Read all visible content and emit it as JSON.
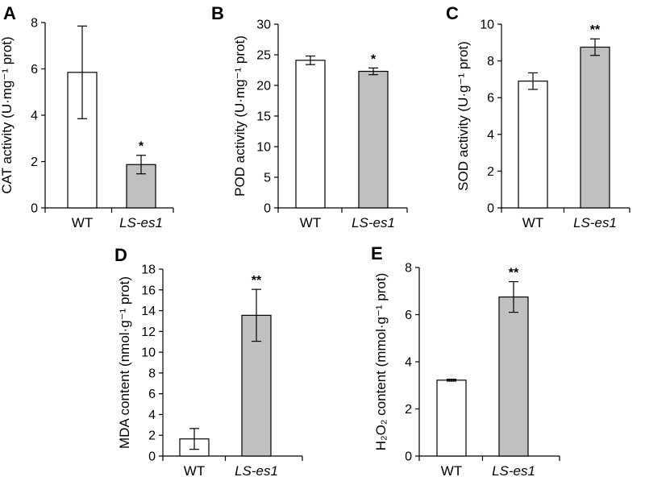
{
  "colors": {
    "wt_fill": "#ffffff",
    "mutant_fill": "#c0c0c0",
    "stroke": "#000000"
  },
  "chart_data": [
    {
      "panel": "A",
      "type": "bar",
      "ylabel": "CAT activity (U·mg⁻¹ prot)",
      "categories": [
        "WT",
        "LS-es1"
      ],
      "values": [
        5.85,
        1.87
      ],
      "errors": [
        2.0,
        0.4
      ],
      "significance": [
        "",
        "*"
      ],
      "ylim": [
        0,
        8
      ],
      "yticks": [
        "0",
        "2",
        "4",
        "6",
        "8"
      ]
    },
    {
      "panel": "B",
      "type": "bar",
      "ylabel": "POD activity (U·mg⁻¹ prot)",
      "categories": [
        "WT",
        "LS-es1"
      ],
      "values": [
        24.1,
        22.3
      ],
      "errors": [
        0.7,
        0.55
      ],
      "significance": [
        "",
        "*"
      ],
      "ylim": [
        0,
        30
      ],
      "yticks": [
        "0",
        "5",
        "10",
        "15",
        "20",
        "25",
        "30"
      ]
    },
    {
      "panel": "C",
      "type": "bar",
      "ylabel": "SOD activity (U·g⁻¹ prot)",
      "categories": [
        "WT",
        "LS-es1"
      ],
      "values": [
        6.9,
        8.75
      ],
      "errors": [
        0.45,
        0.45
      ],
      "significance": [
        "",
        "**"
      ],
      "ylim": [
        0,
        10
      ],
      "yticks": [
        "0",
        "2",
        "4",
        "6",
        "8",
        "10"
      ]
    },
    {
      "panel": "D",
      "type": "bar",
      "ylabel": "MDA content (nmol·g⁻¹ prot)",
      "categories": [
        "WT",
        "LS-es1"
      ],
      "values": [
        1.65,
        13.55
      ],
      "errors": [
        1.0,
        2.5
      ],
      "significance": [
        "",
        "**"
      ],
      "ylim": [
        0,
        18
      ],
      "yticks": [
        "0",
        "2",
        "4",
        "6",
        "8",
        "10",
        "12",
        "14",
        "16",
        "18"
      ]
    },
    {
      "panel": "E",
      "type": "bar",
      "ylabel": "H₂O₂ content (mmol·g⁻¹ prot)",
      "categories": [
        "WT",
        "LS-es1"
      ],
      "values": [
        3.22,
        6.75
      ],
      "errors": [
        0.04,
        0.65
      ],
      "significance": [
        "",
        "**"
      ],
      "ylim": [
        0,
        8
      ],
      "yticks": [
        "0",
        "2",
        "4",
        "6",
        "8"
      ]
    }
  ]
}
